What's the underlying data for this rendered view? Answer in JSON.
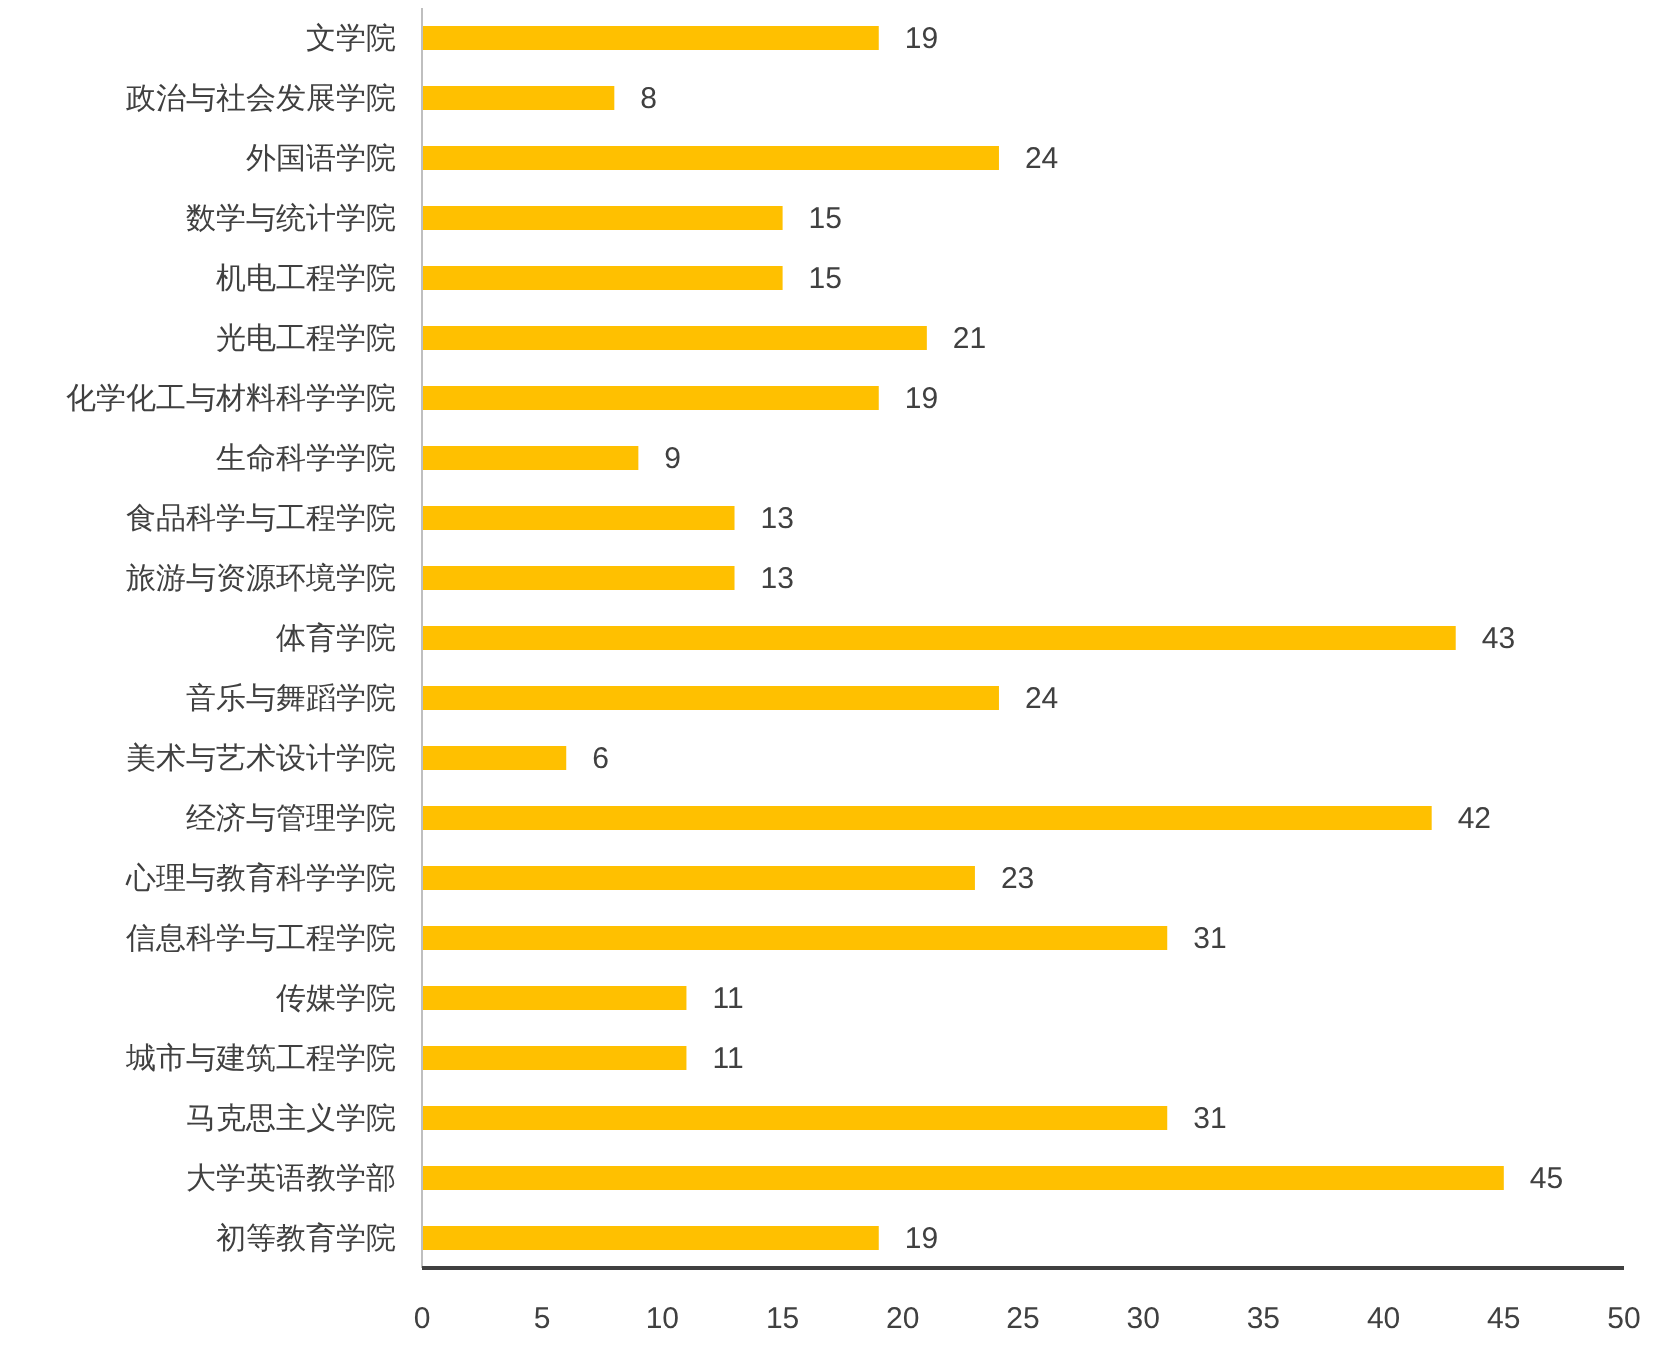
{
  "chart_data": {
    "type": "bar",
    "orientation": "horizontal",
    "categories": [
      "文学院",
      "政治与社会发展学院",
      "外国语学院",
      "数学与统计学院",
      "机电工程学院",
      "光电工程学院",
      "化学化工与材料科学学院",
      "生命科学学院",
      "食品科学与工程学院",
      "旅游与资源环境学院",
      "体育学院",
      "音乐与舞蹈学院",
      "美术与艺术设计学院",
      "经济与管理学院",
      "心理与教育科学学院",
      "信息科学与工程学院",
      "传媒学院",
      "城市与建筑工程学院",
      "马克思主义学院",
      "大学英语教学部",
      "初等教育学院"
    ],
    "values": [
      19,
      8,
      24,
      15,
      15,
      21,
      19,
      9,
      13,
      13,
      43,
      24,
      6,
      42,
      23,
      31,
      11,
      11,
      31,
      45,
      19
    ],
    "color": "#ffc000",
    "xlim": [
      0,
      50
    ],
    "xticks": [
      0,
      5,
      10,
      15,
      20,
      25,
      30,
      35,
      40,
      45,
      50
    ],
    "data_labels": true
  }
}
